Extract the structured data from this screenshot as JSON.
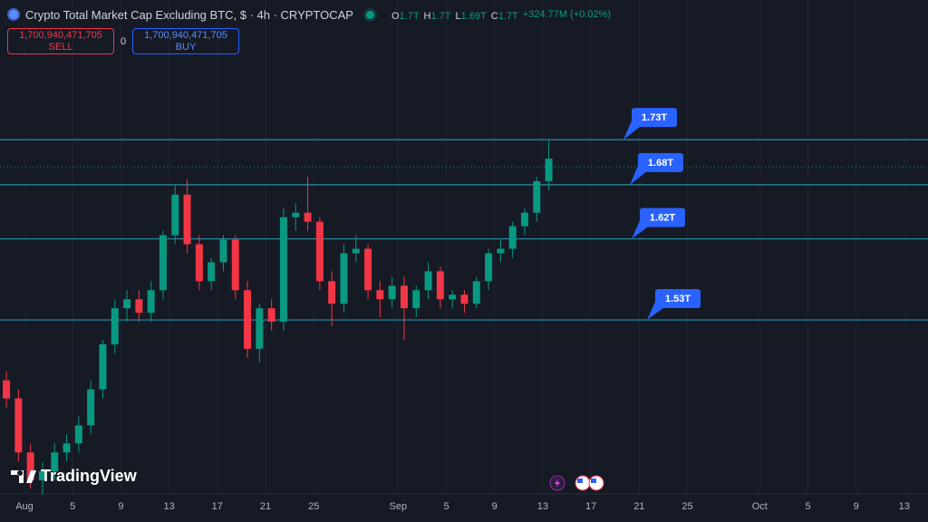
{
  "chart_data": {
    "type": "candlestick",
    "title": "Crypto Total Market Cap Excluding BTC, $ · 4h · CRYPTOCAP",
    "ohlc": [
      {
        "key": "O",
        "value": 1.7,
        "label": "1.7T"
      },
      {
        "key": "H",
        "value": 1.7,
        "label": "1.7T"
      },
      {
        "key": "L",
        "value": 1.69,
        "label": "1.69T"
      },
      {
        "key": "C",
        "value": 1.7,
        "label": "1.7T"
      }
    ],
    "change": "+324.77M (+0.02%)",
    "sell": {
      "value": 1700940471705,
      "label": "1,700,940,471,705",
      "text": "SELL"
    },
    "spread": 0,
    "buy": {
      "value": 1700940471705,
      "label": "1,700,940,471,705",
      "text": "BUY"
    },
    "watermark": "TradingView",
    "up_color": "#089981",
    "down_color": "#f23645",
    "level_color": "#2a8fa8",
    "grid": true,
    "xlim": [
      -2.03,
      74.96
    ],
    "ylim": [
      1.337,
      1.885
    ],
    "xticks": [
      {
        "value": 0,
        "label": "Aug"
      },
      {
        "value": 4,
        "label": "5"
      },
      {
        "value": 8,
        "label": "9"
      },
      {
        "value": 12,
        "label": "13"
      },
      {
        "value": 16,
        "label": "17"
      },
      {
        "value": 20,
        "label": "21"
      },
      {
        "value": 24,
        "label": "25"
      },
      {
        "value": 31,
        "label": "Sep"
      },
      {
        "value": 35,
        "label": "5"
      },
      {
        "value": 39,
        "label": "9"
      },
      {
        "value": 43,
        "label": "13"
      },
      {
        "value": 47,
        "label": "17"
      },
      {
        "value": 51,
        "label": "21"
      },
      {
        "value": 55,
        "label": "25"
      },
      {
        "value": 61,
        "label": "Oct"
      },
      {
        "value": 65,
        "label": "5"
      },
      {
        "value": 69,
        "label": "9"
      },
      {
        "value": 73,
        "label": "13"
      }
    ],
    "levels": [
      {
        "value": 1.73,
        "label": "1.73T"
      },
      {
        "value": 1.68,
        "label": "1.68T"
      },
      {
        "value": 1.62,
        "label": "1.62T"
      },
      {
        "value": 1.53,
        "label": "1.53T"
      }
    ],
    "x": [
      -1.5,
      -0.5,
      0.5,
      1.5,
      2.5,
      3.5,
      4.5,
      5.5,
      6.5,
      7.5,
      8.5,
      9.5,
      10.5,
      11.5,
      12.5,
      13.5,
      14.5,
      15.5,
      16.5,
      17.5,
      18.5,
      19.5,
      20.5,
      21.5,
      22.5,
      23.5,
      24.5,
      25.5,
      26.5,
      27.5,
      28.5,
      29.5,
      30.5,
      31.5,
      32.5,
      33.5,
      34.5,
      35.5,
      36.5,
      37.5,
      38.5,
      39.5,
      40.5,
      41.5,
      42.5,
      43.5
    ],
    "candles": [
      [
        1.463,
        1.473,
        1.433,
        1.443
      ],
      [
        1.443,
        1.453,
        1.373,
        1.383
      ],
      [
        1.383,
        1.393,
        1.343,
        1.352
      ],
      [
        1.352,
        1.372,
        1.337,
        1.362
      ],
      [
        1.362,
        1.393,
        1.352,
        1.383
      ],
      [
        1.383,
        1.403,
        1.373,
        1.393
      ],
      [
        1.393,
        1.423,
        1.383,
        1.413
      ],
      [
        1.413,
        1.463,
        1.403,
        1.453
      ],
      [
        1.453,
        1.508,
        1.443,
        1.503
      ],
      [
        1.503,
        1.553,
        1.493,
        1.543
      ],
      [
        1.543,
        1.563,
        1.528,
        1.553
      ],
      [
        1.553,
        1.563,
        1.528,
        1.538
      ],
      [
        1.538,
        1.573,
        1.528,
        1.563
      ],
      [
        1.563,
        1.629,
        1.553,
        1.624
      ],
      [
        1.624,
        1.679,
        1.614,
        1.669
      ],
      [
        1.669,
        1.686,
        1.604,
        1.614
      ],
      [
        1.614,
        1.624,
        1.563,
        1.573
      ],
      [
        1.573,
        1.599,
        1.563,
        1.594
      ],
      [
        1.594,
        1.624,
        1.584,
        1.619
      ],
      [
        1.619,
        1.624,
        1.553,
        1.563
      ],
      [
        1.563,
        1.573,
        1.488,
        1.498
      ],
      [
        1.498,
        1.548,
        1.483,
        1.543
      ],
      [
        1.543,
        1.553,
        1.518,
        1.528
      ],
      [
        1.528,
        1.654,
        1.518,
        1.644
      ],
      [
        1.644,
        1.659,
        1.629,
        1.649
      ],
      [
        1.649,
        1.689,
        1.629,
        1.639
      ],
      [
        1.639,
        1.644,
        1.563,
        1.573
      ],
      [
        1.573,
        1.584,
        1.523,
        1.548
      ],
      [
        1.548,
        1.614,
        1.538,
        1.604
      ],
      [
        1.604,
        1.624,
        1.594,
        1.609
      ],
      [
        1.609,
        1.614,
        1.553,
        1.563
      ],
      [
        1.563,
        1.573,
        1.533,
        1.553
      ],
      [
        1.553,
        1.578,
        1.543,
        1.568
      ],
      [
        1.568,
        1.578,
        1.508,
        1.543
      ],
      [
        1.543,
        1.568,
        1.533,
        1.563
      ],
      [
        1.563,
        1.594,
        1.553,
        1.584
      ],
      [
        1.584,
        1.589,
        1.543,
        1.553
      ],
      [
        1.553,
        1.563,
        1.543,
        1.558
      ],
      [
        1.558,
        1.563,
        1.538,
        1.548
      ],
      [
        1.548,
        1.578,
        1.543,
        1.573
      ],
      [
        1.573,
        1.609,
        1.563,
        1.604
      ],
      [
        1.604,
        1.619,
        1.594,
        1.609
      ],
      [
        1.609,
        1.639,
        1.599,
        1.634
      ],
      [
        1.634,
        1.654,
        1.624,
        1.649
      ],
      [
        1.649,
        1.689,
        1.639,
        1.684
      ],
      [
        1.684,
        1.729,
        1.674,
        1.709
      ]
    ]
  }
}
